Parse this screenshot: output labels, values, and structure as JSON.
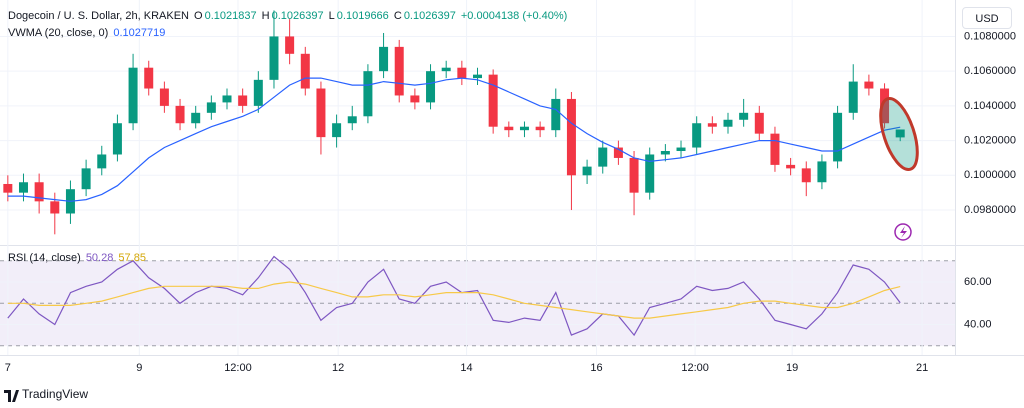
{
  "brand": "TradingView",
  "chart_data": [
    {
      "type": "candlestick",
      "title": "Dogecoin / U. S. Dollar, 2h, KRAKEN",
      "ohlc_labels": [
        "O",
        "H",
        "L",
        "C"
      ],
      "change": "+0.0004138 (+0.40%)",
      "currency": "USD",
      "up_color": "#089981",
      "down_color": "#f23645",
      "grid": true,
      "xlim": [
        0,
        61
      ],
      "xticks": [
        {
          "value": 0.5,
          "label": "7"
        },
        {
          "value": 8.9,
          "label": "9"
        },
        {
          "value": 15.2,
          "label": "12:00"
        },
        {
          "value": 21.6,
          "label": "12"
        },
        {
          "value": 29.8,
          "label": "14"
        },
        {
          "value": 38.1,
          "label": "16"
        },
        {
          "value": 44.4,
          "label": "12:00"
        },
        {
          "value": 50.6,
          "label": "19"
        },
        {
          "value": 58.9,
          "label": "21"
        }
      ],
      "ylim": [
        0.0961,
        0.1101
      ],
      "yticks": [
        {
          "value": 0.098,
          "label": "0.0980000"
        },
        {
          "value": 0.1,
          "label": "0.1000000"
        },
        {
          "value": 0.102,
          "label": "0.1020000"
        },
        {
          "value": 0.104,
          "label": "0.1040000"
        },
        {
          "value": 0.106,
          "label": "0.1060000"
        },
        {
          "value": 0.108,
          "label": "0.1080000"
        }
      ],
      "open": [
        0.0995,
        0.099,
        0.0996,
        0.0985,
        0.0978,
        0.0992,
        0.1004,
        0.1012,
        0.103,
        0.1062,
        0.105,
        0.104,
        0.103,
        0.1036,
        0.1042,
        0.1046,
        0.104,
        0.1055,
        0.108,
        0.107,
        0.105,
        0.1022,
        0.103,
        0.1034,
        0.106,
        0.1074,
        0.1046,
        0.1042,
        0.106,
        0.1062,
        0.1056,
        0.1058,
        0.1028,
        0.1026,
        0.1028,
        0.1026,
        0.1044,
        0.1,
        0.1005,
        0.1016,
        0.101,
        0.099,
        0.1012,
        0.1014,
        0.1016,
        0.103,
        0.1028,
        0.1032,
        0.1036,
        0.1024,
        0.1006,
        0.1004,
        0.0996,
        0.1008,
        0.1036,
        0.1054,
        0.105,
        0.1021837
      ],
      "high": [
        0.1,
        0.1001,
        0.1001,
        0.099,
        0.0997,
        0.1009,
        0.1017,
        0.1035,
        0.107,
        0.1066,
        0.1054,
        0.1044,
        0.104,
        0.1046,
        0.105,
        0.105,
        0.106,
        0.1095,
        0.109,
        0.1074,
        0.1054,
        0.1035,
        0.104,
        0.1064,
        0.1082,
        0.1078,
        0.105,
        0.1064,
        0.1066,
        0.1066,
        0.1062,
        0.1061,
        0.1031,
        0.1031,
        0.1031,
        0.105,
        0.1048,
        0.1009,
        0.102,
        0.102,
        0.1014,
        0.1016,
        0.1018,
        0.102,
        0.1034,
        0.1034,
        0.1036,
        0.1044,
        0.104,
        0.1028,
        0.101,
        0.1008,
        0.1012,
        0.104,
        0.1064,
        0.1058,
        0.1053,
        0.1026397
      ],
      "low": [
        0.0985,
        0.0985,
        0.0978,
        0.0966,
        0.0972,
        0.0988,
        0.1,
        0.1008,
        0.1026,
        0.1046,
        0.1036,
        0.1026,
        0.1027,
        0.1032,
        0.1038,
        0.1036,
        0.1036,
        0.105,
        0.1064,
        0.1046,
        0.1012,
        0.1016,
        0.1026,
        0.103,
        0.1056,
        0.1042,
        0.1038,
        0.1038,
        0.1056,
        0.1052,
        0.1052,
        0.1024,
        0.1022,
        0.1022,
        0.1022,
        0.1022,
        0.098,
        0.0995,
        0.1001,
        0.1006,
        0.0977,
        0.0986,
        0.1008,
        0.101,
        0.1012,
        0.1024,
        0.1024,
        0.1028,
        0.102,
        0.1002,
        0.1,
        0.0988,
        0.0992,
        0.1004,
        0.1032,
        0.1046,
        0.1027,
        0.1019666
      ],
      "close": [
        0.099,
        0.0996,
        0.0985,
        0.0978,
        0.0992,
        0.1004,
        0.1012,
        0.103,
        0.1062,
        0.105,
        0.104,
        0.103,
        0.1036,
        0.1042,
        0.1046,
        0.104,
        0.1055,
        0.108,
        0.107,
        0.105,
        0.1022,
        0.103,
        0.1034,
        0.106,
        0.1074,
        0.1046,
        0.1042,
        0.106,
        0.1062,
        0.1056,
        0.1058,
        0.1028,
        0.1026,
        0.1028,
        0.1026,
        0.1044,
        0.1,
        0.1005,
        0.1016,
        0.101,
        0.099,
        0.1012,
        0.1014,
        0.1016,
        0.103,
        0.1028,
        0.1032,
        0.1036,
        0.1024,
        0.1006,
        0.1004,
        0.0996,
        0.1008,
        0.1036,
        0.1054,
        0.105,
        0.103,
        0.1026397
      ],
      "series": [
        {
          "name": "VWMA (20, close, 0)",
          "color": "#2962ff",
          "values": [
            0.0988,
            0.0988,
            0.0987,
            0.0986,
            0.0985,
            0.0986,
            0.0989,
            0.0994,
            0.1002,
            0.101,
            0.1016,
            0.102,
            0.1024,
            0.1028,
            0.1031,
            0.1034,
            0.1038,
            0.1045,
            0.1052,
            0.1056,
            0.1056,
            0.1054,
            0.1052,
            0.1052,
            0.1054,
            0.1053,
            0.1052,
            0.1053,
            0.1055,
            0.1056,
            0.1055,
            0.1052,
            0.1048,
            0.1044,
            0.104,
            0.1038,
            0.103,
            0.1024,
            0.1019,
            0.1015,
            0.101,
            0.1008,
            0.1009,
            0.101,
            0.1012,
            0.1014,
            0.1016,
            0.1018,
            0.102,
            0.102,
            0.1018,
            0.1016,
            0.1014,
            0.1014,
            0.1018,
            0.1022,
            0.1026,
            0.1027719
          ]
        }
      ]
    },
    {
      "type": "line",
      "ylim": [
        28,
        76
      ],
      "yticks": [
        {
          "value": 40,
          "label": "40.00"
        },
        {
          "value": 60,
          "label": "60.00"
        }
      ],
      "levels": [
        30,
        50,
        70
      ],
      "band_color": "#7e57c2",
      "series": [
        {
          "name": "RSI (14, close)",
          "color": "#7e57c2",
          "values": [
            43,
            52,
            45,
            40,
            55,
            58,
            60,
            66,
            70,
            62,
            57,
            50,
            55,
            58,
            57,
            54,
            62,
            72,
            66,
            55,
            42,
            48,
            50,
            60,
            66,
            52,
            50,
            58,
            60,
            55,
            56,
            42,
            41,
            43,
            42,
            55,
            35,
            38,
            45,
            44,
            35,
            48,
            50,
            52,
            58,
            56,
            57,
            60,
            52,
            42,
            40,
            38,
            45,
            55,
            68,
            66,
            60,
            50.28
          ]
        },
        {
          "color": "#f7c948",
          "values": [
            50,
            50,
            49,
            49,
            49,
            50,
            51,
            53,
            55,
            57,
            58,
            58,
            58,
            58,
            58,
            57,
            57,
            59,
            60,
            59,
            57,
            55,
            53,
            53,
            54,
            54,
            53,
            54,
            55,
            55,
            55,
            54,
            52,
            50,
            49,
            48,
            47,
            46,
            45,
            44,
            43,
            43,
            44,
            45,
            46,
            47,
            48,
            50,
            51,
            51,
            50,
            49,
            48,
            48,
            50,
            53,
            56,
            57.85
          ]
        }
      ]
    }
  ]
}
